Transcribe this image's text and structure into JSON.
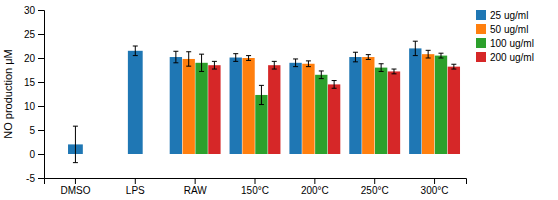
{
  "chart_data": {
    "type": "bar",
    "categories": [
      "DMSO",
      "LPS",
      "RAW",
      "150°C",
      "200°C",
      "250°C",
      "300°C"
    ],
    "y_label": "NO production μM",
    "series": [
      {
        "name": "25 ug/ml",
        "values": [
          2.0,
          21.5,
          20.2,
          20.1,
          19.0,
          20.2,
          22.0
        ],
        "errors": [
          3.8,
          1.0,
          1.2,
          0.8,
          0.8,
          1.0,
          1.5
        ]
      },
      {
        "name": "50 ug/ml",
        "values": [
          null,
          null,
          19.8,
          20.0,
          18.8,
          20.2,
          20.8
        ],
        "errors": [
          null,
          null,
          1.5,
          0.5,
          0.6,
          0.5,
          0.8
        ]
      },
      {
        "name": "100 ug/ml",
        "values": [
          null,
          null,
          19.0,
          12.3,
          16.5,
          18.0,
          20.5
        ],
        "errors": [
          null,
          null,
          1.8,
          2.0,
          0.8,
          0.8,
          0.5
        ]
      },
      {
        "name": "200 ug/ml",
        "values": [
          null,
          null,
          18.5,
          18.5,
          14.5,
          17.2,
          18.2
        ],
        "errors": [
          null,
          null,
          0.8,
          0.8,
          0.8,
          0.5,
          0.5
        ]
      }
    ],
    "ylim": [
      -5,
      30
    ],
    "yticks": [
      -5,
      0,
      5,
      10,
      15,
      20,
      25,
      30
    ],
    "legend": "upper right",
    "grid": false
  }
}
